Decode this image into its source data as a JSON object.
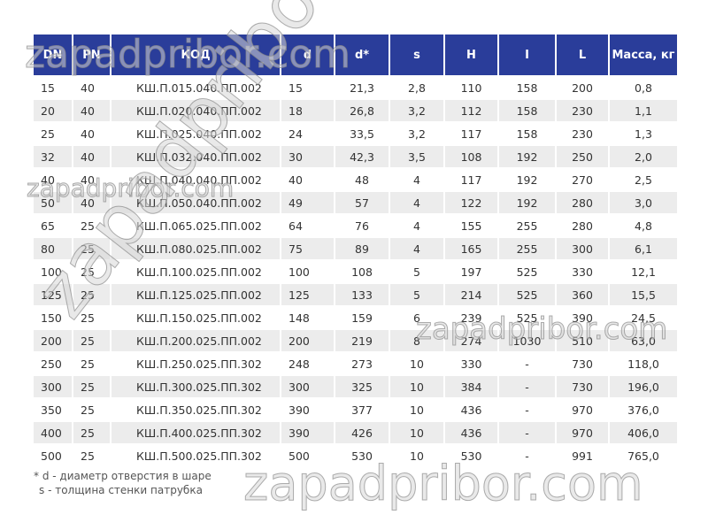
{
  "table": {
    "headers": [
      "DN",
      "PN",
      "КОД",
      "d",
      "d*",
      "s",
      "H",
      "I",
      "L",
      "Масса, кг"
    ],
    "rows": [
      [
        "15",
        "40",
        "КШ.П.015.040.ПП.002",
        "15",
        "21,3",
        "2,8",
        "110",
        "158",
        "200",
        "0,8"
      ],
      [
        "20",
        "40",
        "КШ.П.020.040.ПП.002",
        "18",
        "26,8",
        "3,2",
        "112",
        "158",
        "230",
        "1,1"
      ],
      [
        "25",
        "40",
        "КШ.П.025.040.ПП.002",
        "24",
        "33,5",
        "3,2",
        "117",
        "158",
        "230",
        "1,3"
      ],
      [
        "32",
        "40",
        "КШ.П.032.040.ПП.002",
        "30",
        "42,3",
        "3,5",
        "108",
        "192",
        "250",
        "2,0"
      ],
      [
        "40",
        "40",
        "КШ.П.040.040.ПП.002",
        "40",
        "48",
        "4",
        "117",
        "192",
        "270",
        "2,5"
      ],
      [
        "50",
        "40",
        "КШ.П.050.040.ПП.002",
        "49",
        "57",
        "4",
        "122",
        "192",
        "280",
        "3,0"
      ],
      [
        "65",
        "25",
        "КШ.П.065.025.ПП.002",
        "64",
        "76",
        "4",
        "155",
        "255",
        "280",
        "4,8"
      ],
      [
        "80",
        "25",
        "КШ.П.080.025.ПП.002",
        "75",
        "89",
        "4",
        "165",
        "255",
        "300",
        "6,1"
      ],
      [
        "100",
        "25",
        "КШ.П.100.025.ПП.002",
        "100",
        "108",
        "5",
        "197",
        "525",
        "330",
        "12,1"
      ],
      [
        "125",
        "25",
        "КШ.П.125.025.ПП.002",
        "125",
        "133",
        "5",
        "214",
        "525",
        "360",
        "15,5"
      ],
      [
        "150",
        "25",
        "КШ.П.150.025.ПП.002",
        "148",
        "159",
        "6",
        "239",
        "525",
        "390",
        "24,5"
      ],
      [
        "200",
        "25",
        "КШ.П.200.025.ПП.002",
        "200",
        "219",
        "8",
        "274",
        "1030",
        "510",
        "63,0"
      ],
      [
        "250",
        "25",
        "КШ.П.250.025.ПП.302",
        "248",
        "273",
        "10",
        "330",
        "-",
        "730",
        "118,0"
      ],
      [
        "300",
        "25",
        "КШ.П.300.025.ПП.302",
        "300",
        "325",
        "10",
        "384",
        "-",
        "730",
        "196,0"
      ],
      [
        "350",
        "25",
        "КШ.П.350.025.ПП.302",
        "390",
        "377",
        "10",
        "436",
        "-",
        "970",
        "376,0"
      ],
      [
        "400",
        "25",
        "КШ.П.400.025.ПП.302",
        "390",
        "426",
        "10",
        "436",
        "-",
        "970",
        "406,0"
      ],
      [
        "500",
        "25",
        "КШ.П.500.025.ПП.302",
        "500",
        "530",
        "10",
        "530",
        "-",
        "991",
        "765,0"
      ]
    ]
  },
  "notes": [
    "* d - диаметр отверстия в шаре",
    "s - толщина стенки патрубка"
  ],
  "watermark": "zapadpribor.com",
  "colors": {
    "header_bg": "#2a3d9a",
    "stripe": "#ececec"
  }
}
